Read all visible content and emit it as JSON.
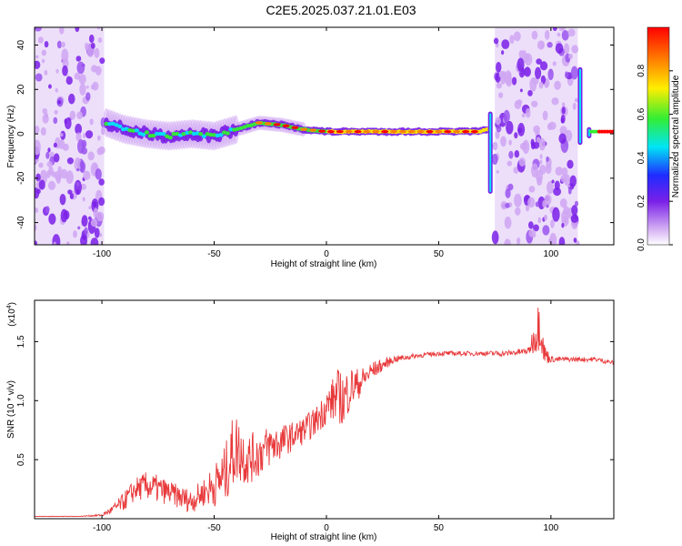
{
  "title": "C2E5.2025.037.21.01.E03",
  "colors": {
    "snr_line": "#e8393b",
    "background": "#ffffff",
    "axis": "#000000"
  },
  "chart_data": [
    {
      "type": "heatmap",
      "xlabel": "Height of straight line (km)",
      "ylabel": "Frequency (Hz)",
      "xlim": [
        -130,
        128
      ],
      "ylim": [
        -50,
        48
      ],
      "xticks": [
        "-100",
        "-50",
        "0",
        "50",
        "100"
      ],
      "yticks": [
        "-40",
        "-20",
        "0",
        "20",
        "40"
      ],
      "colorbar": {
        "label": "Normalized spectral amplitude",
        "range": [
          0,
          1
        ],
        "ticks": [
          "0.0",
          "0.2",
          "0.4",
          "0.6",
          "0.8"
        ],
        "colormap": "rainbow",
        "stops": [
          "#ffffff",
          "#cfa6f2",
          "#7a20e8",
          "#1f2cff",
          "#00e5f5",
          "#33ee33",
          "#ffee00",
          "#ff8000",
          "#ff0000"
        ]
      },
      "noise_regions_km": [
        [
          -130,
          -99
        ],
        [
          75,
          112
        ]
      ],
      "ridge_frequency_hz": {
        "x_km": [
          -98,
          -90,
          -80,
          -70,
          -60,
          -50,
          -40,
          -30,
          -20,
          -10,
          0,
          10,
          20,
          30,
          40,
          50,
          60,
          68,
          72
        ],
        "y_hz": [
          5,
          2,
          0,
          -1,
          0,
          -1,
          2,
          5,
          4,
          2,
          1,
          1,
          1,
          1,
          1,
          1,
          1,
          1,
          2
        ]
      },
      "trace_features": [
        {
          "x_km": 73,
          "y_range_hz": [
            -27,
            10
          ]
        },
        {
          "x_km": 113,
          "y_range_hz": [
            -5,
            30
          ]
        },
        {
          "x_km": 117,
          "y_range_hz": [
            -2,
            3
          ]
        }
      ]
    },
    {
      "type": "line",
      "xlabel": "Height of straight line (km)",
      "ylabel": "SNR (10 * v/v)",
      "y_multiplier": "(x10",
      "y_multiplier_exp": "4",
      "xlim": [
        -130,
        128
      ],
      "ylim": [
        0.0,
        1.85
      ],
      "xticks": [
        "-100",
        "-50",
        "0",
        "50",
        "100"
      ],
      "yticks": [
        "0.5",
        "1.0",
        "1.5"
      ],
      "series": [
        {
          "x": [
            -130,
            -110,
            -100,
            -95,
            -90,
            -85,
            -80,
            -75,
            -70,
            -65,
            -60,
            -55,
            -50,
            -45,
            -42,
            -40,
            -35,
            -30,
            -25,
            -20,
            -15,
            -10,
            -5,
            0,
            5,
            8,
            10,
            15,
            20,
            25,
            30,
            40,
            50,
            60,
            70,
            80,
            90,
            94,
            95,
            97,
            100,
            110,
            120,
            128
          ],
          "y": [
            0.02,
            0.02,
            0.03,
            0.08,
            0.15,
            0.25,
            0.28,
            0.25,
            0.22,
            0.18,
            0.15,
            0.22,
            0.28,
            0.38,
            0.55,
            0.6,
            0.5,
            0.55,
            0.62,
            0.65,
            0.7,
            0.75,
            0.82,
            0.95,
            1.05,
            1.0,
            1.1,
            1.15,
            1.25,
            1.3,
            1.35,
            1.38,
            1.4,
            1.4,
            1.4,
            1.4,
            1.42,
            1.6,
            1.7,
            1.4,
            1.35,
            1.35,
            1.35,
            1.32
          ],
          "noise_amplitude": [
            0.002,
            0.002,
            0.01,
            0.04,
            0.08,
            0.1,
            0.12,
            0.12,
            0.1,
            0.1,
            0.1,
            0.12,
            0.18,
            0.25,
            0.3,
            0.3,
            0.22,
            0.2,
            0.18,
            0.15,
            0.12,
            0.12,
            0.12,
            0.15,
            0.22,
            0.25,
            0.2,
            0.12,
            0.08,
            0.05,
            0.03,
            0.02,
            0.02,
            0.02,
            0.02,
            0.025,
            0.03,
            0.2,
            0.25,
            0.1,
            0.025,
            0.02,
            0.02,
            0.02
          ]
        }
      ]
    }
  ]
}
